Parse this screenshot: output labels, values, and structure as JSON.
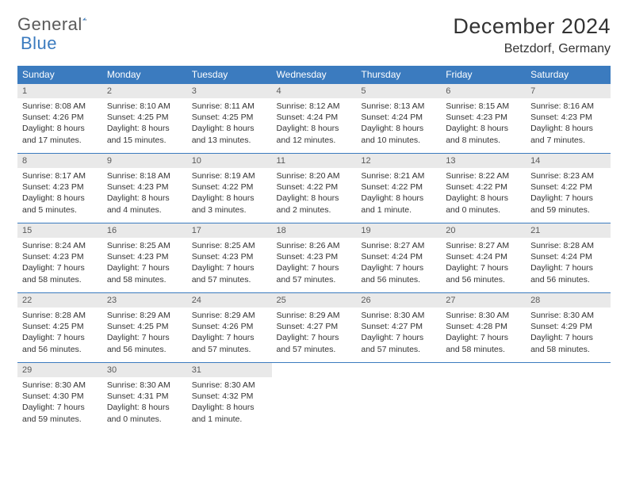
{
  "brand": {
    "word1": "General",
    "word2": "Blue",
    "color_gray": "#5a5a5a",
    "color_blue": "#3b7bbf"
  },
  "title": "December 2024",
  "location": "Betzdorf, Germany",
  "header_bg": "#3b7bbf",
  "header_text_color": "#ffffff",
  "daynum_bg": "#e9e9e9",
  "border_color": "#3b7bbf",
  "dayHeaders": [
    "Sunday",
    "Monday",
    "Tuesday",
    "Wednesday",
    "Thursday",
    "Friday",
    "Saturday"
  ],
  "weeks": [
    [
      {
        "n": "1",
        "sr": "Sunrise: 8:08 AM",
        "ss": "Sunset: 4:26 PM",
        "dl": "Daylight: 8 hours and 17 minutes."
      },
      {
        "n": "2",
        "sr": "Sunrise: 8:10 AM",
        "ss": "Sunset: 4:25 PM",
        "dl": "Daylight: 8 hours and 15 minutes."
      },
      {
        "n": "3",
        "sr": "Sunrise: 8:11 AM",
        "ss": "Sunset: 4:25 PM",
        "dl": "Daylight: 8 hours and 13 minutes."
      },
      {
        "n": "4",
        "sr": "Sunrise: 8:12 AM",
        "ss": "Sunset: 4:24 PM",
        "dl": "Daylight: 8 hours and 12 minutes."
      },
      {
        "n": "5",
        "sr": "Sunrise: 8:13 AM",
        "ss": "Sunset: 4:24 PM",
        "dl": "Daylight: 8 hours and 10 minutes."
      },
      {
        "n": "6",
        "sr": "Sunrise: 8:15 AM",
        "ss": "Sunset: 4:23 PM",
        "dl": "Daylight: 8 hours and 8 minutes."
      },
      {
        "n": "7",
        "sr": "Sunrise: 8:16 AM",
        "ss": "Sunset: 4:23 PM",
        "dl": "Daylight: 8 hours and 7 minutes."
      }
    ],
    [
      {
        "n": "8",
        "sr": "Sunrise: 8:17 AM",
        "ss": "Sunset: 4:23 PM",
        "dl": "Daylight: 8 hours and 5 minutes."
      },
      {
        "n": "9",
        "sr": "Sunrise: 8:18 AM",
        "ss": "Sunset: 4:23 PM",
        "dl": "Daylight: 8 hours and 4 minutes."
      },
      {
        "n": "10",
        "sr": "Sunrise: 8:19 AM",
        "ss": "Sunset: 4:22 PM",
        "dl": "Daylight: 8 hours and 3 minutes."
      },
      {
        "n": "11",
        "sr": "Sunrise: 8:20 AM",
        "ss": "Sunset: 4:22 PM",
        "dl": "Daylight: 8 hours and 2 minutes."
      },
      {
        "n": "12",
        "sr": "Sunrise: 8:21 AM",
        "ss": "Sunset: 4:22 PM",
        "dl": "Daylight: 8 hours and 1 minute."
      },
      {
        "n": "13",
        "sr": "Sunrise: 8:22 AM",
        "ss": "Sunset: 4:22 PM",
        "dl": "Daylight: 8 hours and 0 minutes."
      },
      {
        "n": "14",
        "sr": "Sunrise: 8:23 AM",
        "ss": "Sunset: 4:22 PM",
        "dl": "Daylight: 7 hours and 59 minutes."
      }
    ],
    [
      {
        "n": "15",
        "sr": "Sunrise: 8:24 AM",
        "ss": "Sunset: 4:23 PM",
        "dl": "Daylight: 7 hours and 58 minutes."
      },
      {
        "n": "16",
        "sr": "Sunrise: 8:25 AM",
        "ss": "Sunset: 4:23 PM",
        "dl": "Daylight: 7 hours and 58 minutes."
      },
      {
        "n": "17",
        "sr": "Sunrise: 8:25 AM",
        "ss": "Sunset: 4:23 PM",
        "dl": "Daylight: 7 hours and 57 minutes."
      },
      {
        "n": "18",
        "sr": "Sunrise: 8:26 AM",
        "ss": "Sunset: 4:23 PM",
        "dl": "Daylight: 7 hours and 57 minutes."
      },
      {
        "n": "19",
        "sr": "Sunrise: 8:27 AM",
        "ss": "Sunset: 4:24 PM",
        "dl": "Daylight: 7 hours and 56 minutes."
      },
      {
        "n": "20",
        "sr": "Sunrise: 8:27 AM",
        "ss": "Sunset: 4:24 PM",
        "dl": "Daylight: 7 hours and 56 minutes."
      },
      {
        "n": "21",
        "sr": "Sunrise: 8:28 AM",
        "ss": "Sunset: 4:24 PM",
        "dl": "Daylight: 7 hours and 56 minutes."
      }
    ],
    [
      {
        "n": "22",
        "sr": "Sunrise: 8:28 AM",
        "ss": "Sunset: 4:25 PM",
        "dl": "Daylight: 7 hours and 56 minutes."
      },
      {
        "n": "23",
        "sr": "Sunrise: 8:29 AM",
        "ss": "Sunset: 4:25 PM",
        "dl": "Daylight: 7 hours and 56 minutes."
      },
      {
        "n": "24",
        "sr": "Sunrise: 8:29 AM",
        "ss": "Sunset: 4:26 PM",
        "dl": "Daylight: 7 hours and 57 minutes."
      },
      {
        "n": "25",
        "sr": "Sunrise: 8:29 AM",
        "ss": "Sunset: 4:27 PM",
        "dl": "Daylight: 7 hours and 57 minutes."
      },
      {
        "n": "26",
        "sr": "Sunrise: 8:30 AM",
        "ss": "Sunset: 4:27 PM",
        "dl": "Daylight: 7 hours and 57 minutes."
      },
      {
        "n": "27",
        "sr": "Sunrise: 8:30 AM",
        "ss": "Sunset: 4:28 PM",
        "dl": "Daylight: 7 hours and 58 minutes."
      },
      {
        "n": "28",
        "sr": "Sunrise: 8:30 AM",
        "ss": "Sunset: 4:29 PM",
        "dl": "Daylight: 7 hours and 58 minutes."
      }
    ],
    [
      {
        "n": "29",
        "sr": "Sunrise: 8:30 AM",
        "ss": "Sunset: 4:30 PM",
        "dl": "Daylight: 7 hours and 59 minutes."
      },
      {
        "n": "30",
        "sr": "Sunrise: 8:30 AM",
        "ss": "Sunset: 4:31 PM",
        "dl": "Daylight: 8 hours and 0 minutes."
      },
      {
        "n": "31",
        "sr": "Sunrise: 8:30 AM",
        "ss": "Sunset: 4:32 PM",
        "dl": "Daylight: 8 hours and 1 minute."
      },
      null,
      null,
      null,
      null
    ]
  ]
}
